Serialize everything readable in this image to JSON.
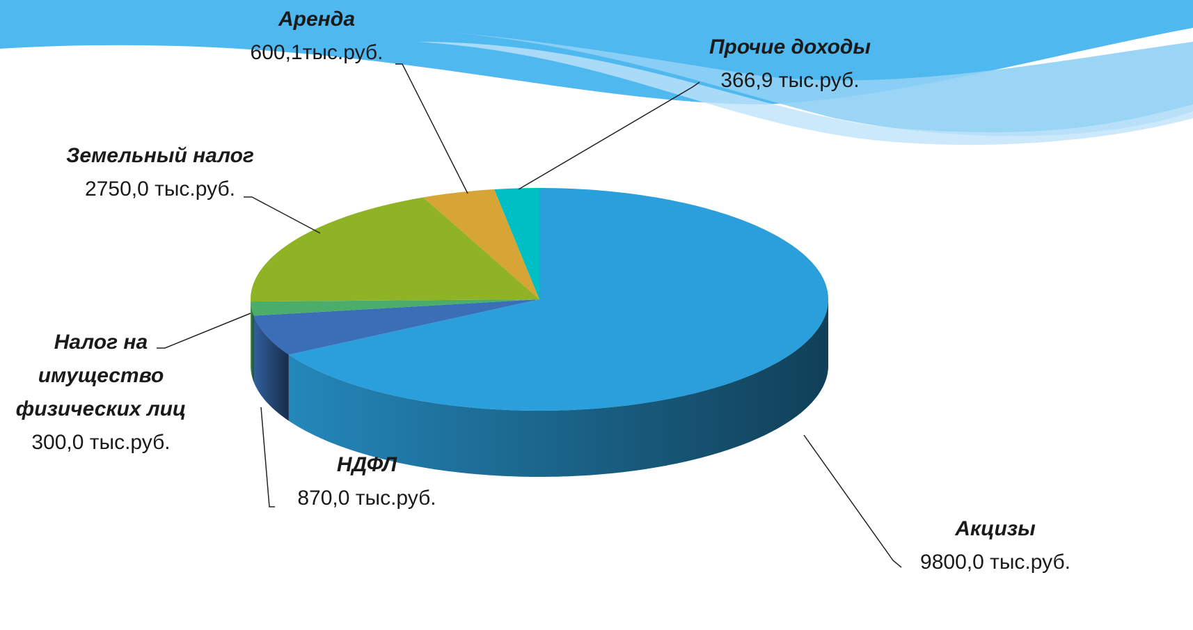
{
  "chart_data": {
    "type": "pie",
    "categories": [
      "Акцизы",
      "НДФЛ",
      "Налог на имущество физических лиц",
      "Земельный налог",
      "Аренда",
      "Прочие доходы"
    ],
    "values": [
      9800.0,
      870.0,
      300.0,
      2750.0,
      600.1,
      366.9
    ],
    "value_labels": [
      "9800,0 тыс.руб.",
      "870,0 тыс.руб.",
      "300,0 тыс.руб.",
      "2750,0 тыс.руб.",
      "600,1тыс.руб.",
      "366,9 тыс.руб."
    ],
    "colors": [
      "#2a9fdb",
      "#3a6fb8",
      "#4aae6a",
      "#8fb324",
      "#d6a535",
      "#00bfc4"
    ]
  }
}
